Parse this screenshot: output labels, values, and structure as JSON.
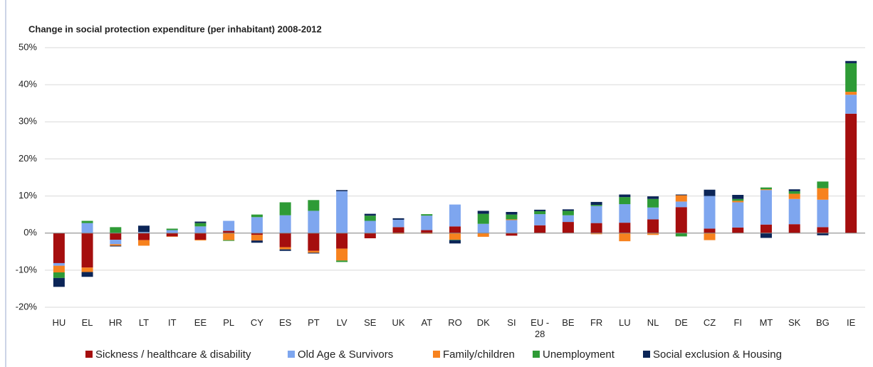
{
  "chart_data": {
    "type": "stacked-bar",
    "title": "Change in social protection expenditure (per inhabitant) 2008-2012",
    "categories": [
      "HU",
      "EL",
      "HR",
      "LT",
      "IT",
      "EE",
      "PL",
      "CY",
      "ES",
      "PT",
      "LV",
      "SE",
      "UK",
      "AT",
      "RO",
      "DK",
      "SI",
      "EU - 28",
      "BE",
      "FR",
      "LU",
      "NL",
      "DE",
      "CZ",
      "FI",
      "MT",
      "SK",
      "BG",
      "IE"
    ],
    "series": [
      {
        "name": "Sickness / healthcare & disability",
        "color": "#a50e0e",
        "values": [
          -8.1,
          -9.3,
          -1.8,
          -1.9,
          -0.9,
          -1.8,
          0.6,
          -0.5,
          -3.8,
          -4.8,
          -4.2,
          -1.4,
          1.6,
          0.8,
          1.8,
          0,
          -0.7,
          2.1,
          3.0,
          2.7,
          2.8,
          3.7,
          7.0,
          1.2,
          1.5,
          2.3,
          2.4,
          1.6,
          32.2
        ]
      },
      {
        "name": "Old Age & Survivors",
        "color": "#7ea6ef",
        "values": [
          -0.7,
          2.7,
          -1.2,
          0.3,
          0.8,
          1.8,
          2.7,
          4.3,
          4.8,
          6.0,
          11.3,
          3.3,
          2.0,
          3.9,
          5.9,
          2.5,
          3.5,
          3.0,
          1.8,
          4.6,
          5.0,
          3.2,
          1.5,
          8.8,
          6.8,
          9.3,
          6.8,
          7.4,
          5.1
        ]
      },
      {
        "name": "Family/children",
        "color": "#f7821e",
        "values": [
          -1.8,
          -1.2,
          -0.4,
          -1.5,
          -0.1,
          -0.2,
          -1.9,
          -1.5,
          -0.6,
          -0.5,
          -3.2,
          0,
          -0.2,
          -0.2,
          -1.8,
          -1.0,
          0.2,
          0,
          0,
          -0.3,
          -2.2,
          -0.5,
          1.7,
          -1.9,
          0.4,
          0.2,
          1.4,
          3.1,
          0.8
        ]
      },
      {
        "name": "Unemployment",
        "color": "#2e9b36",
        "values": [
          -1.5,
          0.6,
          1.6,
          0,
          0.4,
          0.9,
          -0.2,
          0.7,
          3.5,
          2.9,
          -0.4,
          1.4,
          0,
          0.4,
          -0.1,
          2.7,
          1.3,
          0.8,
          1.2,
          0.3,
          1.9,
          2.3,
          -0.9,
          0,
          0.5,
          0.5,
          0.7,
          1.8,
          7.7
        ]
      },
      {
        "name": "Social exclusion & Housing",
        "color": "#0b2557",
        "values": [
          -2.4,
          -1.3,
          -0.2,
          1.7,
          0,
          0.4,
          0,
          -0.6,
          -0.4,
          -0.2,
          0.3,
          0.5,
          0.4,
          0,
          -0.9,
          0.8,
          0.7,
          0.4,
          0.4,
          0.8,
          0.7,
          0.7,
          0.2,
          1.7,
          1.1,
          -1.3,
          0.5,
          -0.6,
          0.6
        ]
      }
    ],
    "ylim": [
      -20,
      50
    ],
    "yticks": [
      {
        "value": -20,
        "label": "-20%"
      },
      {
        "value": -10,
        "label": "-10%"
      },
      {
        "value": 0,
        "label": "0%"
      },
      {
        "value": 10,
        "label": "10%"
      },
      {
        "value": 20,
        "label": "20%"
      },
      {
        "value": 30,
        "label": "30%"
      },
      {
        "value": 40,
        "label": "40%"
      },
      {
        "value": 50,
        "label": "50%"
      }
    ],
    "grid": true
  }
}
